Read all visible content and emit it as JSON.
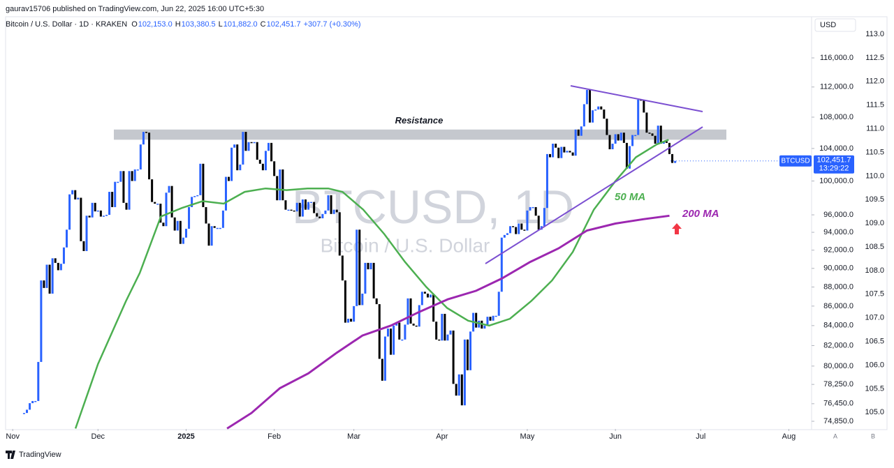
{
  "header": {
    "publisher": "gaurav15706 published on TradingView.com, Jun 22, 2025 16:00 UTC+5:30",
    "symbol": "Bitcoin / U.S. Dollar · 1D · KRAKEN",
    "ohlc": [
      {
        "key": "O",
        "value": "102,153.0"
      },
      {
        "key": "H",
        "value": "103,380.5"
      },
      {
        "key": "L",
        "value": "101,882.0"
      },
      {
        "key": "C",
        "value": "102,451.7"
      }
    ],
    "change": "+307.7 (+0.30%)",
    "currency": "USD",
    "footer": "TradingView",
    "buttons": [
      "A",
      "B"
    ]
  },
  "chart_data": {
    "type": "candlestick",
    "watermark": "BTCUSD, 1D",
    "watermark_subtitle": "Bitcoin / U.S. Dollar",
    "log_scale": true,
    "up_color": "#2962ff",
    "down_color": "#000000",
    "price_tag": {
      "symbol": "BTCUSD",
      "price": "102,451.7",
      "countdown": "13:29:22"
    },
    "resistance": {
      "label": "Resistance",
      "range": [
        105100,
        106400
      ]
    },
    "xlim": [
      -2.5,
      281
    ],
    "xticks": [
      {
        "value": 0,
        "label": "Nov"
      },
      {
        "value": 30,
        "label": "Dec"
      },
      {
        "value": 61,
        "label": "2025"
      },
      {
        "value": 92,
        "label": "Feb"
      },
      {
        "value": 120,
        "label": "Mar"
      },
      {
        "value": 151,
        "label": "Apr"
      },
      {
        "value": 181,
        "label": "May"
      },
      {
        "value": 212,
        "label": "Jun"
      },
      {
        "value": 242,
        "label": "Jul"
      },
      {
        "value": 273,
        "label": "Aug"
      }
    ],
    "ylim": [
      74160,
      121490
    ],
    "yticks": [
      {
        "value": 74850,
        "label": "74,850.0"
      },
      {
        "value": 76450,
        "label": "76,450.0"
      },
      {
        "value": 78250,
        "label": "78,250.0"
      },
      {
        "value": 80000,
        "label": "80,000.0"
      },
      {
        "value": 82000,
        "label": "82,000.0"
      },
      {
        "value": 84000,
        "label": "84,000.0"
      },
      {
        "value": 86000,
        "label": "86,000.0"
      },
      {
        "value": 88000,
        "label": "88,000.0"
      },
      {
        "value": 90000,
        "label": "90,000.0"
      },
      {
        "value": 92000,
        "label": "92,000.0"
      },
      {
        "value": 94000,
        "label": "94,000.0"
      },
      {
        "value": 96000,
        "label": "96,000.0"
      },
      {
        "value": 100000,
        "label": "100,000.0"
      },
      {
        "value": 104000,
        "label": "104,000.0"
      },
      {
        "value": 108000,
        "label": "108,000.0"
      },
      {
        "value": 112000,
        "label": "112,000.0"
      },
      {
        "value": 116000,
        "label": "116,000.0"
      }
    ],
    "y2lim": [
      104.65,
      113.31
    ],
    "y2ticks": [
      {
        "value": 105,
        "label": "105.0"
      },
      {
        "value": 105.5,
        "label": "105.5"
      },
      {
        "value": 106,
        "label": "106.0"
      },
      {
        "value": 106.5,
        "label": "106.5"
      },
      {
        "value": 107,
        "label": "107.0"
      },
      {
        "value": 107.5,
        "label": "107.5"
      },
      {
        "value": 108,
        "label": "108.0"
      },
      {
        "value": 108.5,
        "label": "108.5"
      },
      {
        "value": 109,
        "label": "109.0"
      },
      {
        "value": 109.5,
        "label": "109.5"
      },
      {
        "value": 110,
        "label": "110.0"
      },
      {
        "value": 110.5,
        "label": "110.5"
      },
      {
        "value": 111,
        "label": "111.0"
      },
      {
        "value": 111.5,
        "label": "111.5"
      },
      {
        "value": 112,
        "label": "112.0"
      },
      {
        "value": 112.5,
        "label": "112.5"
      },
      {
        "value": 113,
        "label": "113.0"
      }
    ],
    "x": [
      4,
      5,
      6,
      7,
      8,
      9,
      10,
      11,
      12,
      13,
      14,
      15,
      16,
      17,
      18,
      19,
      20,
      21,
      22,
      23,
      24,
      25,
      26,
      27,
      28,
      29,
      30,
      31,
      32,
      33,
      34,
      35,
      36,
      37,
      38,
      39,
      40,
      41,
      42,
      43,
      44,
      45,
      46,
      47,
      48,
      49,
      50,
      51,
      52,
      53,
      54,
      55,
      56,
      57,
      58,
      59,
      60,
      61,
      62,
      63,
      64,
      65,
      66,
      67,
      68,
      69,
      70,
      71,
      72,
      73,
      74,
      75,
      76,
      77,
      78,
      79,
      80,
      81,
      82,
      83,
      84,
      85,
      86,
      87,
      88,
      89,
      90,
      91,
      92,
      93,
      94,
      95,
      96,
      97,
      98,
      99,
      100,
      101,
      102,
      103,
      104,
      105,
      106,
      107,
      108,
      109,
      110,
      111,
      112,
      113,
      114,
      115,
      116,
      117,
      118,
      119,
      120,
      121,
      122,
      123,
      124,
      125,
      126,
      127,
      128,
      129,
      130,
      131,
      132,
      133,
      134,
      135,
      136,
      137,
      138,
      139,
      140,
      141,
      142,
      143,
      144,
      145,
      146,
      147,
      148,
      149,
      150,
      151,
      152,
      153,
      154,
      155,
      156,
      157,
      158,
      159,
      160,
      161,
      162,
      163,
      164,
      165,
      166,
      167,
      168,
      169,
      170,
      171,
      172,
      173,
      174,
      175,
      176,
      177,
      178,
      179,
      180,
      181,
      182,
      183,
      184,
      185,
      186,
      187,
      188,
      189,
      190,
      191,
      192,
      193,
      194,
      195,
      196,
      197,
      198,
      199,
      200,
      201,
      202,
      203,
      204,
      205,
      206,
      207,
      208,
      209,
      210,
      211,
      212,
      213,
      214,
      215,
      216,
      217,
      218,
      219,
      220,
      221,
      222,
      223,
      224,
      225,
      226,
      227,
      228,
      229,
      230,
      231,
      232,
      233
    ],
    "values": [
      75600,
      75900,
      76500,
      76700,
      76700,
      80400,
      88700,
      87900,
      90400,
      87300,
      91100,
      90600,
      89800,
      90500,
      92300,
      94300,
      98400,
      98900,
      97800,
      98000,
      93000,
      91900,
      95900,
      95700,
      97400,
      96400,
      96500,
      95800,
      95900,
      96000,
      98700,
      96900,
      99900,
      99900,
      101200,
      97400,
      96600,
      101200,
      100000,
      101400,
      101400,
      104500,
      106100,
      106000,
      100200,
      97500,
      97300,
      97300,
      95100,
      94700,
      98600,
      99400,
      95700,
      94200,
      95300,
      92700,
      93400,
      94400,
      96900,
      98100,
      98200,
      98300,
      102100,
      96900,
      95000,
      92500,
      94700,
      94500,
      94500,
      94500,
      96500,
      100500,
      100000,
      104100,
      104500,
      101300,
      102000,
      106100,
      103700,
      104800,
      104700,
      104800,
      102600,
      102100,
      101300,
      103700,
      104700,
      102400,
      100600,
      97700,
      101400,
      97700,
      96600,
      96600,
      96500,
      96400,
      97400,
      95800,
      97800,
      96600,
      97500,
      97500,
      96200,
      95800,
      95600,
      96100,
      96500,
      98300,
      96100,
      96600,
      96300,
      91400,
      88700,
      84300,
      84700,
      84400,
      86000,
      94300,
      86100,
      87300,
      90600,
      89900,
      90600,
      86800,
      86200,
      80700,
      78600,
      82900,
      83700,
      81100,
      84000,
      84300,
      82600,
      82600,
      84100,
      86800,
      84200,
      84000,
      83900,
      86100,
      87500,
      87300,
      86900,
      87200,
      84400,
      82600,
      82500,
      85200,
      82500,
      83100,
      83500,
      78300,
      77200,
      79200,
      76300,
      82600,
      79600,
      83400,
      85300,
      83800,
      84500,
      83700,
      84000,
      84900,
      84500,
      85000,
      85000,
      87500,
      93400,
      93700,
      93900,
      94700,
      94600,
      93800,
      95000,
      94300,
      94200,
      96500,
      96900,
      96900,
      95900,
      94300,
      94700,
      96800,
      103300,
      102900,
      104600,
      104100,
      102800,
      104200,
      103500,
      103700,
      103500,
      103100,
      106400,
      105600,
      106800,
      109700,
      111600,
      107300,
      108900,
      109000,
      109400,
      109000,
      107800,
      105700,
      103900,
      104600,
      105800,
      105000,
      106000,
      104700,
      101500,
      104300,
      105700,
      105700,
      110300,
      110200,
      108600,
      106000,
      105900,
      105600,
      104600,
      106900,
      104600,
      104900,
      104700,
      103300,
      102200,
      102451.7
    ],
    "series": [
      {
        "name": "50 MA",
        "color": "#4caf50",
        "x": [
          22.1,
          30,
          39.8,
          44.7,
          52.1,
          59.5,
          66.8,
          74.2,
          81.6,
          88.9,
          96.3,
          103.7,
          111,
          116,
          123.3,
          130.7,
          138,
          145.5,
          152.8,
          160.2,
          167.6,
          174.9,
          182.3,
          189.7,
          197,
          204.4,
          211.8,
          219.2,
          226.5,
          230.7
        ],
        "values": [
          74200,
          80200,
          86500,
          89500,
          95800,
          96800,
          97600,
          97300,
          98700,
          99100,
          98900,
          99100,
          99100,
          98700,
          96600,
          93800,
          90700,
          88000,
          85800,
          84500,
          84000,
          84700,
          86500,
          88700,
          91800,
          96600,
          99900,
          102900,
          104500,
          105100
        ]
      },
      {
        "name": "200 MA",
        "color": "#9c27b0",
        "x": [
          75.4,
          84,
          94,
          104,
          114,
          123,
          133,
          143,
          153,
          163,
          172,
          182,
          192,
          202,
          212,
          222,
          231
        ],
        "values": [
          74200,
          75600,
          77900,
          79300,
          81300,
          83000,
          84000,
          85400,
          86700,
          87600,
          88900,
          90700,
          92200,
          94200,
          95000,
          95500,
          95900
        ]
      }
    ]
  }
}
